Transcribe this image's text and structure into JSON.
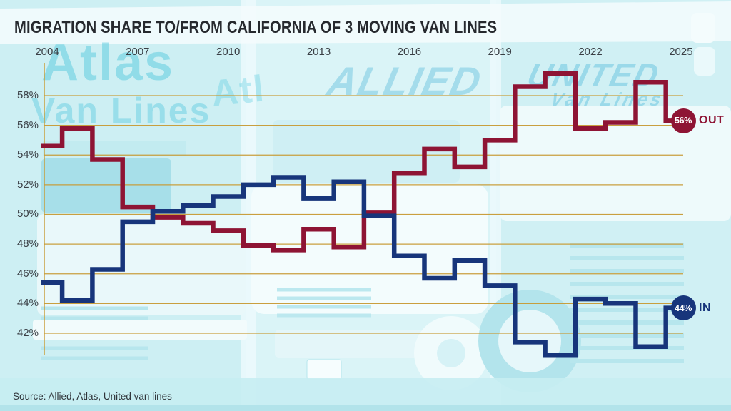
{
  "page": {
    "background_color": "#d8f3f6"
  },
  "title": "MIGRATION SHARE TO/FROM CALIFORNIA OF 3 MOVING VAN LINES",
  "source_note": "Source: Allied, Atlas, United van lines",
  "colors": {
    "out_line": "#8e1434",
    "in_line": "#17357b",
    "gridline": "#c89b35",
    "axis_text": "#3a3f45",
    "title_text": "#26292e",
    "badge_text": "#ffffff"
  },
  "background": {
    "watermarks": {
      "atlas_line1": "Atlas",
      "atlas_line2": "Van Lines",
      "atlas_partial": "Atl",
      "allied": "ALLIED",
      "united_line1": "UNITED",
      "united_line2": "Van Lines"
    }
  },
  "chart_data": {
    "type": "line",
    "subtype": "step-mid",
    "title": "MIGRATION SHARE TO/FROM CALIFORNIA OF 3 MOVING VAN LINES",
    "x": [
      2004,
      2005,
      2006,
      2007,
      2008,
      2009,
      2010,
      2011,
      2012,
      2013,
      2014,
      2015,
      2016,
      2017,
      2018,
      2019,
      2020,
      2021,
      2022,
      2023,
      2024,
      2025
    ],
    "x_tick_labels": [
      "2004",
      "2007",
      "2010",
      "2013",
      "2016",
      "2019",
      "2022",
      "2025"
    ],
    "y_tick_labels": [
      "58%",
      "56%",
      "54%",
      "52%",
      "50%",
      "48%",
      "46%",
      "44%",
      "42%"
    ],
    "xlim": [
      2003.8,
      2025.4
    ],
    "ylim": [
      40.4,
      60.2
    ],
    "grid": "horizontal-only",
    "legend": "end-of-line badges",
    "series": [
      {
        "name": "OUT",
        "color": "#8e1434",
        "badge_value": "56%",
        "end_label": "OUT",
        "values": [
          54.6,
          55.8,
          53.7,
          50.5,
          49.8,
          49.4,
          48.9,
          47.9,
          47.6,
          49.0,
          47.8,
          50.1,
          52.8,
          54.4,
          53.2,
          55.0,
          58.6,
          59.5,
          55.8,
          56.2,
          58.9,
          56.3
        ]
      },
      {
        "name": "IN",
        "color": "#17357b",
        "badge_value": "44%",
        "end_label": "IN",
        "values": [
          45.4,
          44.2,
          46.3,
          49.5,
          50.2,
          50.6,
          51.2,
          52.0,
          52.5,
          51.1,
          52.2,
          49.9,
          47.2,
          45.7,
          46.9,
          45.2,
          41.4,
          40.5,
          44.3,
          44.0,
          41.1,
          43.7
        ]
      }
    ]
  }
}
